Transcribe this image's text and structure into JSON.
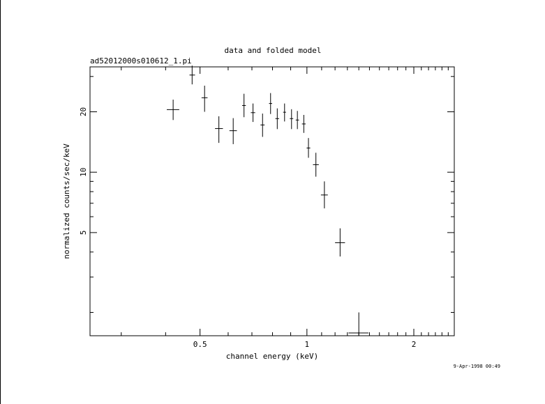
{
  "chart_data": {
    "type": "scatter",
    "title": "data and folded model",
    "subtitle": "ad52012000s010612_1.pi",
    "xlabel": "channel energy (keV)",
    "ylabel": "normalized counts/sec/keV",
    "x_scale": "log",
    "y_scale": "log",
    "xlim": [
      0.245,
      2.6
    ],
    "ylim": [
      1.53,
      33.5
    ],
    "x_ticks": [
      0.5,
      1,
      2
    ],
    "x_tick_labels": [
      "0.5",
      "1",
      "2"
    ],
    "y_ticks": [
      5,
      10,
      20
    ],
    "y_tick_labels": [
      "5",
      "10",
      "20"
    ],
    "grid": false,
    "points": [
      {
        "x": 0.42,
        "y": 20.5,
        "xerr": [
          0.403,
          0.437
        ],
        "yerr": [
          18.2,
          23.0
        ]
      },
      {
        "x": 0.475,
        "y": 30.5,
        "xerr": [
          0.467,
          0.484
        ],
        "yerr": [
          27.4,
          34.0
        ]
      },
      {
        "x": 0.515,
        "y": 23.5,
        "xerr": [
          0.505,
          0.525
        ],
        "yerr": [
          20.0,
          27.0
        ]
      },
      {
        "x": 0.565,
        "y": 16.5,
        "xerr": [
          0.551,
          0.58
        ],
        "yerr": [
          14.0,
          19.0
        ]
      },
      {
        "x": 0.62,
        "y": 16.1,
        "xerr": [
          0.605,
          0.635
        ],
        "yerr": [
          13.8,
          18.6
        ]
      },
      {
        "x": 0.665,
        "y": 21.5,
        "xerr": [
          0.657,
          0.673
        ],
        "yerr": [
          18.8,
          24.6
        ]
      },
      {
        "x": 0.705,
        "y": 19.8,
        "xerr": [
          0.695,
          0.715
        ],
        "yerr": [
          17.8,
          22.0
        ]
      },
      {
        "x": 0.75,
        "y": 17.2,
        "xerr": [
          0.74,
          0.76
        ],
        "yerr": [
          15.0,
          19.6
        ]
      },
      {
        "x": 0.79,
        "y": 22.0,
        "xerr": [
          0.782,
          0.798
        ],
        "yerr": [
          19.5,
          24.8
        ]
      },
      {
        "x": 0.825,
        "y": 18.5,
        "xerr": [
          0.815,
          0.835
        ],
        "yerr": [
          16.4,
          20.8
        ]
      },
      {
        "x": 0.865,
        "y": 19.9,
        "xerr": [
          0.857,
          0.873
        ],
        "yerr": [
          17.9,
          22.0
        ]
      },
      {
        "x": 0.905,
        "y": 18.5,
        "xerr": [
          0.895,
          0.915
        ],
        "yerr": [
          16.4,
          20.6
        ]
      },
      {
        "x": 0.94,
        "y": 18.2,
        "xerr": [
          0.93,
          0.95
        ],
        "yerr": [
          16.4,
          20.2
        ]
      },
      {
        "x": 0.98,
        "y": 17.4,
        "xerr": [
          0.968,
          0.992
        ],
        "yerr": [
          15.7,
          19.3
        ]
      },
      {
        "x": 1.01,
        "y": 13.2,
        "xerr": [
          0.998,
          1.022
        ],
        "yerr": [
          11.8,
          14.8
        ]
      },
      {
        "x": 1.06,
        "y": 10.9,
        "xerr": [
          1.04,
          1.08
        ],
        "yerr": [
          9.5,
          12.5
        ]
      },
      {
        "x": 1.12,
        "y": 7.7,
        "xerr": [
          1.095,
          1.145
        ],
        "yerr": [
          6.6,
          9.0
        ]
      },
      {
        "x": 1.24,
        "y": 4.45,
        "xerr": [
          1.2,
          1.28
        ],
        "yerr": [
          3.8,
          5.25
        ]
      },
      {
        "x": 1.4,
        "y": 1.58,
        "xerr": [
          1.31,
          1.49
        ],
        "yerr": [
          1.53,
          2.0
        ]
      }
    ]
  },
  "timestamp": "9-Apr-1998 00:49"
}
